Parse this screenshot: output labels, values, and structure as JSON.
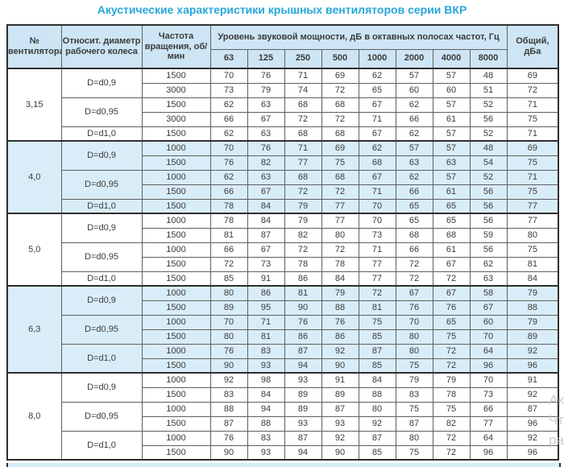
{
  "title": "Акустические характеристики крышных вентиляторов серии ВКР",
  "colors": {
    "title_accent": "#29a6da",
    "header_bg": "#cde5f4",
    "group_highlight_bg": "#d9edf8",
    "border_thick": "#2e2e2e",
    "border_thin": "#5f5f5f"
  },
  "table": {
    "headers": {
      "fan": "№ вентилятора",
      "diameter": "Относит. диаметр рабочего колеса",
      "speed": "Частота вращения, об/мин",
      "octave_span": "Уровень звуковой мощности, дБ в октавных полосах частот, Гц",
      "octave_bands": [
        "63",
        "125",
        "250",
        "500",
        "1000",
        "2000",
        "4000",
        "8000"
      ],
      "total": "Общий, дБа"
    },
    "groups": [
      {
        "fan": "3,15",
        "subgroups": [
          {
            "diameter": "D=d0,9",
            "rows": [
              {
                "speed": "1500",
                "levels": [
                  70,
                  76,
                  71,
                  69,
                  62,
                  57,
                  57,
                  48
                ],
                "total": 69
              },
              {
                "speed": "3000",
                "levels": [
                  73,
                  79,
                  74,
                  72,
                  65,
                  60,
                  60,
                  51
                ],
                "total": 72
              }
            ]
          },
          {
            "diameter": "D=d0,95",
            "rows": [
              {
                "speed": "1500",
                "levels": [
                  62,
                  63,
                  68,
                  68,
                  67,
                  62,
                  57,
                  52
                ],
                "total": 71
              },
              {
                "speed": "3000",
                "levels": [
                  66,
                  67,
                  72,
                  72,
                  71,
                  66,
                  61,
                  56
                ],
                "total": 75
              }
            ]
          },
          {
            "diameter": "D=d1,0",
            "rows": [
              {
                "speed": "1500",
                "levels": [
                  62,
                  63,
                  68,
                  68,
                  67,
                  62,
                  57,
                  52
                ],
                "total": 71
              }
            ]
          }
        ]
      },
      {
        "fan": "4,0",
        "subgroups": [
          {
            "diameter": "D=d0,9",
            "rows": [
              {
                "speed": "1000",
                "levels": [
                  70,
                  76,
                  71,
                  69,
                  62,
                  57,
                  57,
                  48
                ],
                "total": 69
              },
              {
                "speed": "1500",
                "levels": [
                  76,
                  82,
                  77,
                  75,
                  68,
                  63,
                  63,
                  54
                ],
                "total": 75
              }
            ]
          },
          {
            "diameter": "D=d0,95",
            "rows": [
              {
                "speed": "1000",
                "levels": [
                  62,
                  63,
                  68,
                  68,
                  67,
                  62,
                  57,
                  52
                ],
                "total": 71
              },
              {
                "speed": "1500",
                "levels": [
                  66,
                  67,
                  72,
                  72,
                  71,
                  66,
                  61,
                  56
                ],
                "total": 75
              }
            ]
          },
          {
            "diameter": "D=d1,0",
            "rows": [
              {
                "speed": "1500",
                "levels": [
                  78,
                  84,
                  79,
                  77,
                  70,
                  65,
                  65,
                  56
                ],
                "total": 77
              }
            ]
          }
        ]
      },
      {
        "fan": "5,0",
        "subgroups": [
          {
            "diameter": "D=d0,9",
            "rows": [
              {
                "speed": "1000",
                "levels": [
                  78,
                  84,
                  79,
                  77,
                  70,
                  65,
                  65,
                  56
                ],
                "total": 77
              },
              {
                "speed": "1500",
                "levels": [
                  81,
                  87,
                  82,
                  80,
                  73,
                  68,
                  68,
                  59
                ],
                "total": 80
              }
            ]
          },
          {
            "diameter": "D=d0,95",
            "rows": [
              {
                "speed": "1000",
                "levels": [
                  66,
                  67,
                  72,
                  72,
                  71,
                  66,
                  61,
                  56
                ],
                "total": 75
              },
              {
                "speed": "1500",
                "levels": [
                  72,
                  73,
                  78,
                  78,
                  77,
                  72,
                  67,
                  62
                ],
                "total": 81
              }
            ]
          },
          {
            "diameter": "D=d1,0",
            "rows": [
              {
                "speed": "1500",
                "levels": [
                  85,
                  91,
                  86,
                  84,
                  77,
                  72,
                  72,
                  63
                ],
                "total": 84
              }
            ]
          }
        ]
      },
      {
        "fan": "6,3",
        "subgroups": [
          {
            "diameter": "D=d0,9",
            "rows": [
              {
                "speed": "1000",
                "levels": [
                  80,
                  86,
                  81,
                  79,
                  72,
                  67,
                  67,
                  58
                ],
                "total": 79
              },
              {
                "speed": "1500",
                "levels": [
                  89,
                  95,
                  90,
                  88,
                  81,
                  76,
                  76,
                  67
                ],
                "total": 88
              }
            ]
          },
          {
            "diameter": "D=d0,95",
            "rows": [
              {
                "speed": "1000",
                "levels": [
                  70,
                  71,
                  76,
                  76,
                  75,
                  70,
                  65,
                  60
                ],
                "total": 79
              },
              {
                "speed": "1500",
                "levels": [
                  80,
                  81,
                  86,
                  86,
                  85,
                  80,
                  75,
                  70
                ],
                "total": 89
              }
            ]
          },
          {
            "diameter": "D=d1,0",
            "rows": [
              {
                "speed": "1000",
                "levels": [
                  76,
                  83,
                  87,
                  92,
                  87,
                  80,
                  72,
                  64
                ],
                "total": 92
              },
              {
                "speed": "1500",
                "levels": [
                  90,
                  93,
                  94,
                  90,
                  85,
                  75,
                  72,
                  96
                ],
                "total": 96
              }
            ]
          }
        ]
      },
      {
        "fan": "8,0",
        "subgroups": [
          {
            "diameter": "D=d0,9",
            "rows": [
              {
                "speed": "1000",
                "levels": [
                  92,
                  98,
                  93,
                  91,
                  84,
                  79,
                  79,
                  70
                ],
                "total": 91
              },
              {
                "speed": "1500",
                "levels": [
                  83,
                  84,
                  89,
                  89,
                  88,
                  83,
                  78,
                  73
                ],
                "total": 92
              }
            ]
          },
          {
            "diameter": "D=d0,95",
            "rows": [
              {
                "speed": "1000",
                "levels": [
                  88,
                  94,
                  89,
                  87,
                  80,
                  75,
                  75,
                  66
                ],
                "total": 87
              },
              {
                "speed": "1500",
                "levels": [
                  87,
                  88,
                  93,
                  93,
                  92,
                  87,
                  82,
                  77
                ],
                "total": 96
              }
            ]
          },
          {
            "diameter": "D=d1,0",
            "rows": [
              {
                "speed": "1000",
                "levels": [
                  76,
                  83,
                  87,
                  92,
                  87,
                  80,
                  72,
                  64
                ],
                "total": 92
              },
              {
                "speed": "1500",
                "levels": [
                  90,
                  93,
                  94,
                  90,
                  85,
                  75,
                  72,
                  96
                ],
                "total": 96
              }
            ]
          }
        ]
      }
    ]
  },
  "watermark": {
    "fragments": [
      "Ак",
      "Чт",
      "ра"
    ]
  }
}
